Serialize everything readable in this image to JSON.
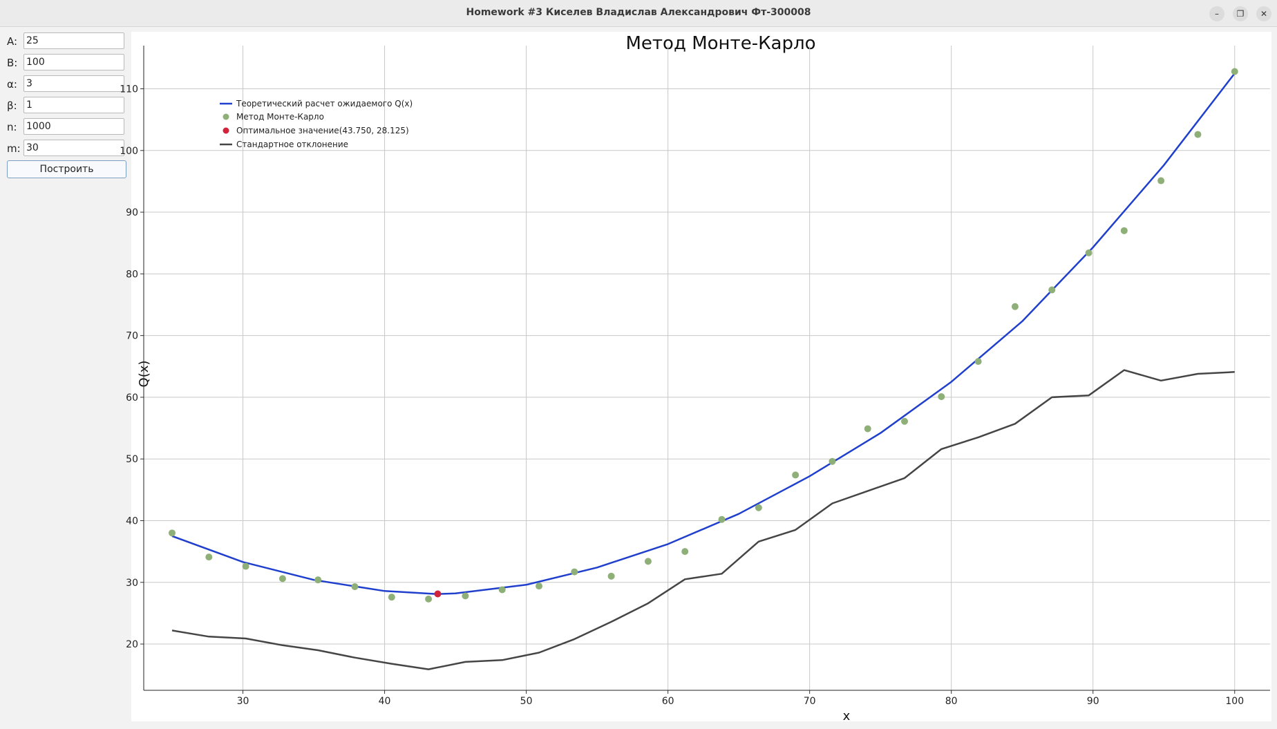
{
  "window": {
    "title": "Homework #3 Киселев Владислав Александрович Фт-300008",
    "min_glyph": "–",
    "max_glyph": "❐",
    "close_glyph": "✕"
  },
  "params": [
    {
      "label": "A:",
      "value": "25"
    },
    {
      "label": "B:",
      "value": "100"
    },
    {
      "label": "α:",
      "value": "3"
    },
    {
      "label": "β:",
      "value": "1"
    },
    {
      "label": "n:",
      "value": "1000"
    },
    {
      "label": "m:",
      "value": "30"
    }
  ],
  "build_label": "Построить",
  "chart_data": {
    "type": "line",
    "title": "Метод Монте-Карло",
    "xlabel": "x",
    "ylabel": "Q(x)",
    "xlim": [
      23,
      102.5
    ],
    "ylim": [
      12.5,
      117
    ],
    "xticks": [
      30,
      40,
      50,
      60,
      70,
      80,
      90,
      100
    ],
    "yticks": [
      20,
      30,
      40,
      50,
      60,
      70,
      80,
      90,
      100,
      110
    ],
    "grid": true,
    "legend_position": "top-left",
    "theory": {
      "name": "Теоретический расчет ожидаемого Q(x)",
      "color": "#1f3fcc",
      "x": [
        25,
        30,
        35,
        40,
        43.75,
        45,
        50,
        55,
        60,
        65,
        70,
        75,
        80,
        85,
        90,
        95,
        100
      ],
      "y": [
        37.5,
        33.3,
        30.4,
        28.6,
        28.1,
        28.2,
        29.6,
        32.4,
        36.2,
        41.1,
        47.2,
        54.2,
        62.5,
        72.3,
        84.3,
        97.6,
        112.5
      ]
    },
    "monte_carlo": {
      "name": "Метод Монте-Карло",
      "color": "#8faf78",
      "x": [
        25,
        27.6,
        30.2,
        32.8,
        35.3,
        37.9,
        40.5,
        43.1,
        45.7,
        48.3,
        50.9,
        53.4,
        56.0,
        58.6,
        61.2,
        63.8,
        66.4,
        69.0,
        71.6,
        74.1,
        76.7,
        79.3,
        81.9,
        84.5,
        87.1,
        89.7,
        92.2,
        94.8,
        97.4,
        100
      ],
      "y": [
        38.0,
        34.1,
        32.6,
        30.6,
        30.4,
        29.3,
        27.6,
        27.3,
        27.8,
        28.8,
        29.4,
        31.7,
        31.0,
        33.4,
        35.0,
        40.2,
        42.1,
        47.4,
        49.6,
        54.9,
        56.1,
        60.1,
        65.8,
        74.7,
        77.4,
        83.4,
        87.0,
        95.1,
        102.6,
        112.8
      ]
    },
    "optimum": {
      "name": "Оптимальное значение(43.750, 28.125)",
      "color": "#d1243a",
      "x": 43.75,
      "y": 28.125
    },
    "std": {
      "name": "Стандартное отклонение",
      "color": "#454545",
      "x": [
        25,
        27.6,
        30.2,
        32.8,
        35.3,
        37.9,
        40.5,
        43.1,
        45.7,
        48.3,
        50.9,
        53.4,
        56.0,
        58.6,
        61.2,
        63.8,
        66.4,
        69.0,
        71.6,
        74.1,
        76.7,
        79.3,
        81.9,
        84.5,
        87.1,
        89.7,
        92.2,
        94.8,
        97.4,
        100
      ],
      "y": [
        22.2,
        21.2,
        20.9,
        19.8,
        19.0,
        17.8,
        16.8,
        15.9,
        17.1,
        17.4,
        18.6,
        20.8,
        23.6,
        26.6,
        30.5,
        31.4,
        36.6,
        38.5,
        42.8,
        44.8,
        46.9,
        51.6,
        53.5,
        55.7,
        60.0,
        60.3,
        64.4,
        62.7,
        63.8,
        64.1
      ]
    }
  }
}
